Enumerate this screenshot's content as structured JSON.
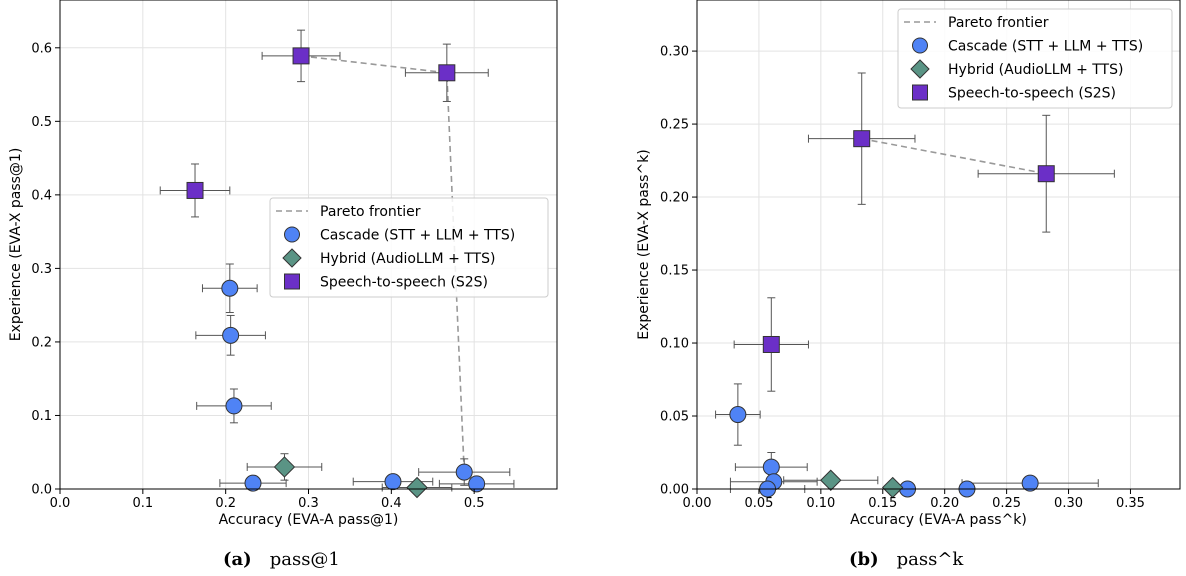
{
  "chart_data": [
    {
      "type": "scatter",
      "title": "",
      "xlabel": "Accuracy (EVA-A pass@1)",
      "ylabel": "Experience (EVA-X pass@1)",
      "xlim": [
        0.0,
        0.6
      ],
      "ylim": [
        0.0,
        0.665
      ],
      "xticks": [
        "0.0",
        "0.1",
        "0.2",
        "0.3",
        "0.4",
        "0.5"
      ],
      "yticks": [
        "0.0",
        "0.1",
        "0.2",
        "0.3",
        "0.4",
        "0.5",
        "0.6"
      ],
      "grid": true,
      "legend_position": "center-right",
      "frontier": {
        "name": "Pareto frontier",
        "points": [
          [
            0.291,
            0.589
          ],
          [
            0.467,
            0.566
          ],
          [
            0.488,
            0.023
          ]
        ]
      },
      "series": [
        {
          "name": "Cascade (STT + LLM + TTS)",
          "marker": "circle",
          "color": "#4f83f5",
          "points": [
            {
              "x": 0.205,
              "y": 0.273,
              "xerr": 0.033,
              "yerr": 0.033
            },
            {
              "x": 0.206,
              "y": 0.209,
              "xerr": 0.042,
              "yerr": 0.027
            },
            {
              "x": 0.21,
              "y": 0.113,
              "xerr": 0.045,
              "yerr": 0.023
            },
            {
              "x": 0.233,
              "y": 0.008,
              "xerr": 0.04,
              "yerr": 0.0
            },
            {
              "x": 0.402,
              "y": 0.01,
              "xerr": 0.048,
              "yerr": 0.0
            },
            {
              "x": 0.488,
              "y": 0.023,
              "xerr": 0.055,
              "yerr": 0.018
            },
            {
              "x": 0.503,
              "y": 0.007,
              "xerr": 0.045,
              "yerr": 0.0
            }
          ]
        },
        {
          "name": "Hybrid (AudioLLM + TTS)",
          "marker": "diamond",
          "color": "#5a9485",
          "points": [
            {
              "x": 0.271,
              "y": 0.03,
              "xerr": 0.045,
              "yerr": 0.018
            },
            {
              "x": 0.431,
              "y": 0.002,
              "xerr": 0.042,
              "yerr": 0.0
            }
          ]
        },
        {
          "name": "Speech-to-speech (S2S)",
          "marker": "square",
          "color": "#6b2fc7",
          "points": [
            {
              "x": 0.163,
              "y": 0.406,
              "xerr": 0.042,
              "yerr": 0.036
            },
            {
              "x": 0.291,
              "y": 0.589,
              "xerr": 0.047,
              "yerr": 0.035
            },
            {
              "x": 0.467,
              "y": 0.566,
              "xerr": 0.05,
              "yerr": 0.039
            }
          ]
        }
      ]
    },
    {
      "type": "scatter",
      "title": "",
      "xlabel": "Accuracy (EVA-A pass^k)",
      "ylabel": "Experience (EVA-X pass^k)",
      "xlim": [
        0.0,
        0.39
      ],
      "ylim": [
        0.0,
        0.335
      ],
      "xticks": [
        "0.00",
        "0.05",
        "0.10",
        "0.15",
        "0.20",
        "0.25",
        "0.30",
        "0.35"
      ],
      "yticks": [
        "0.00",
        "0.05",
        "0.10",
        "0.15",
        "0.20",
        "0.25",
        "0.30"
      ],
      "grid": true,
      "legend_position": "top-right",
      "frontier": {
        "name": "Pareto frontier",
        "points": [
          [
            0.133,
            0.24
          ],
          [
            0.282,
            0.216
          ]
        ]
      },
      "series": [
        {
          "name": "Cascade (STT + LLM + TTS)",
          "marker": "circle",
          "color": "#4f83f5",
          "points": [
            {
              "x": 0.033,
              "y": 0.051,
              "xerr": 0.018,
              "yerr": 0.021
            },
            {
              "x": 0.06,
              "y": 0.015,
              "xerr": 0.029,
              "yerr": 0.01
            },
            {
              "x": 0.062,
              "y": 0.005,
              "xerr": 0.035,
              "yerr": 0.0
            },
            {
              "x": 0.057,
              "y": 0.0,
              "xerr": 0.03,
              "yerr": 0.0
            },
            {
              "x": 0.17,
              "y": 0.0,
              "xerr": 0.0,
              "yerr": 0.0
            },
            {
              "x": 0.218,
              "y": 0.0,
              "xerr": 0.0,
              "yerr": 0.0
            },
            {
              "x": 0.269,
              "y": 0.004,
              "xerr": 0.055,
              "yerr": 0.003
            }
          ]
        },
        {
          "name": "Hybrid (AudioLLM + TTS)",
          "marker": "diamond",
          "color": "#5a9485",
          "points": [
            {
              "x": 0.108,
              "y": 0.006,
              "xerr": 0.038,
              "yerr": 0.0
            },
            {
              "x": 0.158,
              "y": 0.001,
              "xerr": 0.0,
              "yerr": 0.0
            }
          ]
        },
        {
          "name": "Speech-to-speech (S2S)",
          "marker": "square",
          "color": "#6b2fc7",
          "points": [
            {
              "x": 0.133,
              "y": 0.24,
              "xerr": 0.043,
              "yerr": 0.045
            },
            {
              "x": 0.282,
              "y": 0.216,
              "xerr": 0.055,
              "yerr": 0.04
            },
            {
              "x": 0.06,
              "y": 0.099,
              "xerr": 0.03,
              "yerr": 0.032
            }
          ]
        }
      ]
    }
  ],
  "captions": [
    {
      "letter": "(a)",
      "text": "pass@1"
    },
    {
      "letter": "(b)",
      "text": "pass^k"
    }
  ]
}
